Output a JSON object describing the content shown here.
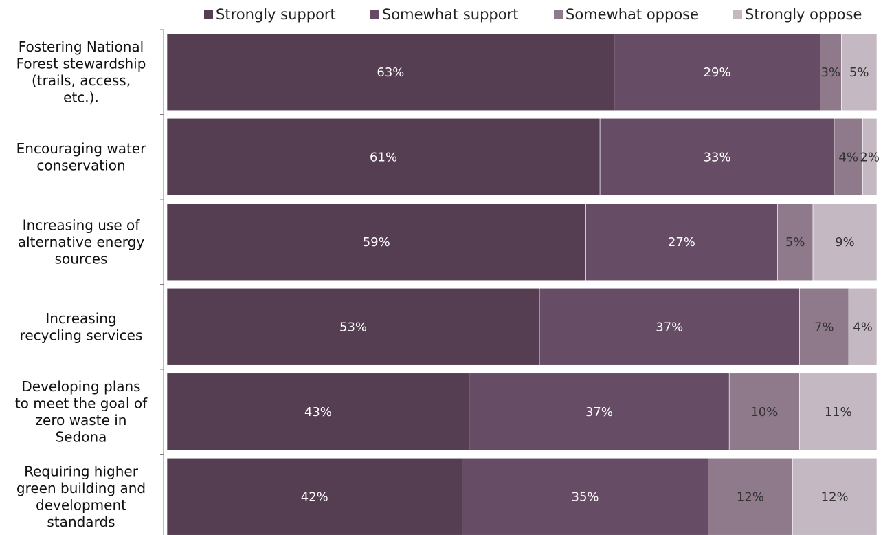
{
  "chart_data": {
    "type": "bar",
    "orientation": "horizontal",
    "stacked": "percent",
    "legend_position": "top",
    "grid": false,
    "categories": [
      [
        "Fostering National",
        "Forest stewardship",
        "(trails, access,",
        "etc.)."
      ],
      [
        "Encouraging water",
        "conservation"
      ],
      [
        "Increasing use of",
        "alternative energy",
        "sources"
      ],
      [
        "Increasing",
        "recycling services"
      ],
      [
        "Developing plans",
        "to meet the goal of",
        "zero waste in",
        "Sedona"
      ],
      [
        "Requiring higher",
        "green building and",
        "development",
        "standards"
      ]
    ],
    "series": [
      {
        "name": "Strongly support",
        "color": "#553d52",
        "label_color": "#ffffff",
        "values": [
          63,
          61,
          59,
          53,
          43,
          42
        ]
      },
      {
        "name": "Somewhat support",
        "color": "#664c65",
        "label_color": "#ffffff",
        "values": [
          29,
          33,
          27,
          37,
          37,
          35
        ]
      },
      {
        "name": "Somewhat oppose",
        "color": "#8e7a8b",
        "label_color": "#333333",
        "values": [
          3,
          4,
          5,
          7,
          10,
          12
        ]
      },
      {
        "name": "Strongly oppose",
        "color": "#c4b9c2",
        "label_color": "#333333",
        "values": [
          5,
          2,
          9,
          4,
          11,
          12
        ]
      }
    ],
    "value_suffix": "%"
  }
}
